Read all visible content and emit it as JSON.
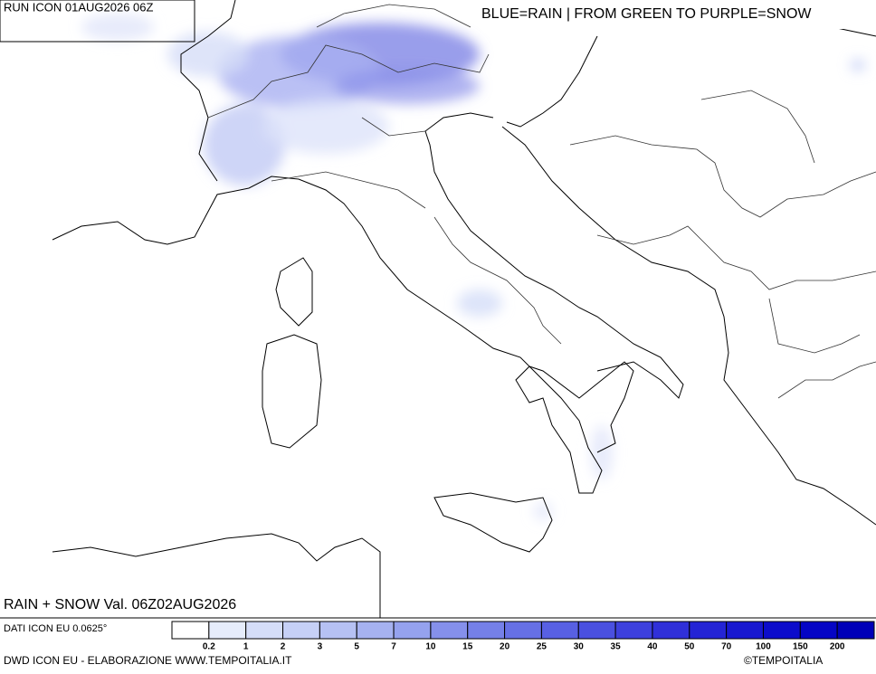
{
  "header": {
    "run": "RUN ICON 01AUG2026 06Z",
    "note": "BLUE=RAIN | FROM GREEN TO PURPLE=SNOW"
  },
  "map": {
    "title": "RAIN + SNOW Val. 06Z02AUG2026"
  },
  "legend": {
    "source": "DATI ICON EU 0.0625°",
    "thresholds": [
      0.2,
      1,
      2,
      3,
      5,
      7,
      10,
      15,
      20,
      25,
      30,
      35,
      40,
      50,
      70,
      100,
      150,
      200
    ],
    "colors": [
      "#ffffff",
      "#e6ecfb",
      "#d5ddf8",
      "#c6d0f6",
      "#b6c1f3",
      "#a6b2f0",
      "#95a2ee",
      "#8590eb",
      "#7580e8",
      "#6670e5",
      "#5860e3",
      "#4a50e0",
      "#3d40dd",
      "#3030d9",
      "#2424d5",
      "#1818d0",
      "#0c0ccb",
      "#0505c5",
      "#0000b8"
    ]
  },
  "footer": {
    "credit": "DWD ICON EU - ELABORAZIONE WWW.TEMPOITALIA.IT",
    "copyright": "©TEMPOITALIA"
  }
}
